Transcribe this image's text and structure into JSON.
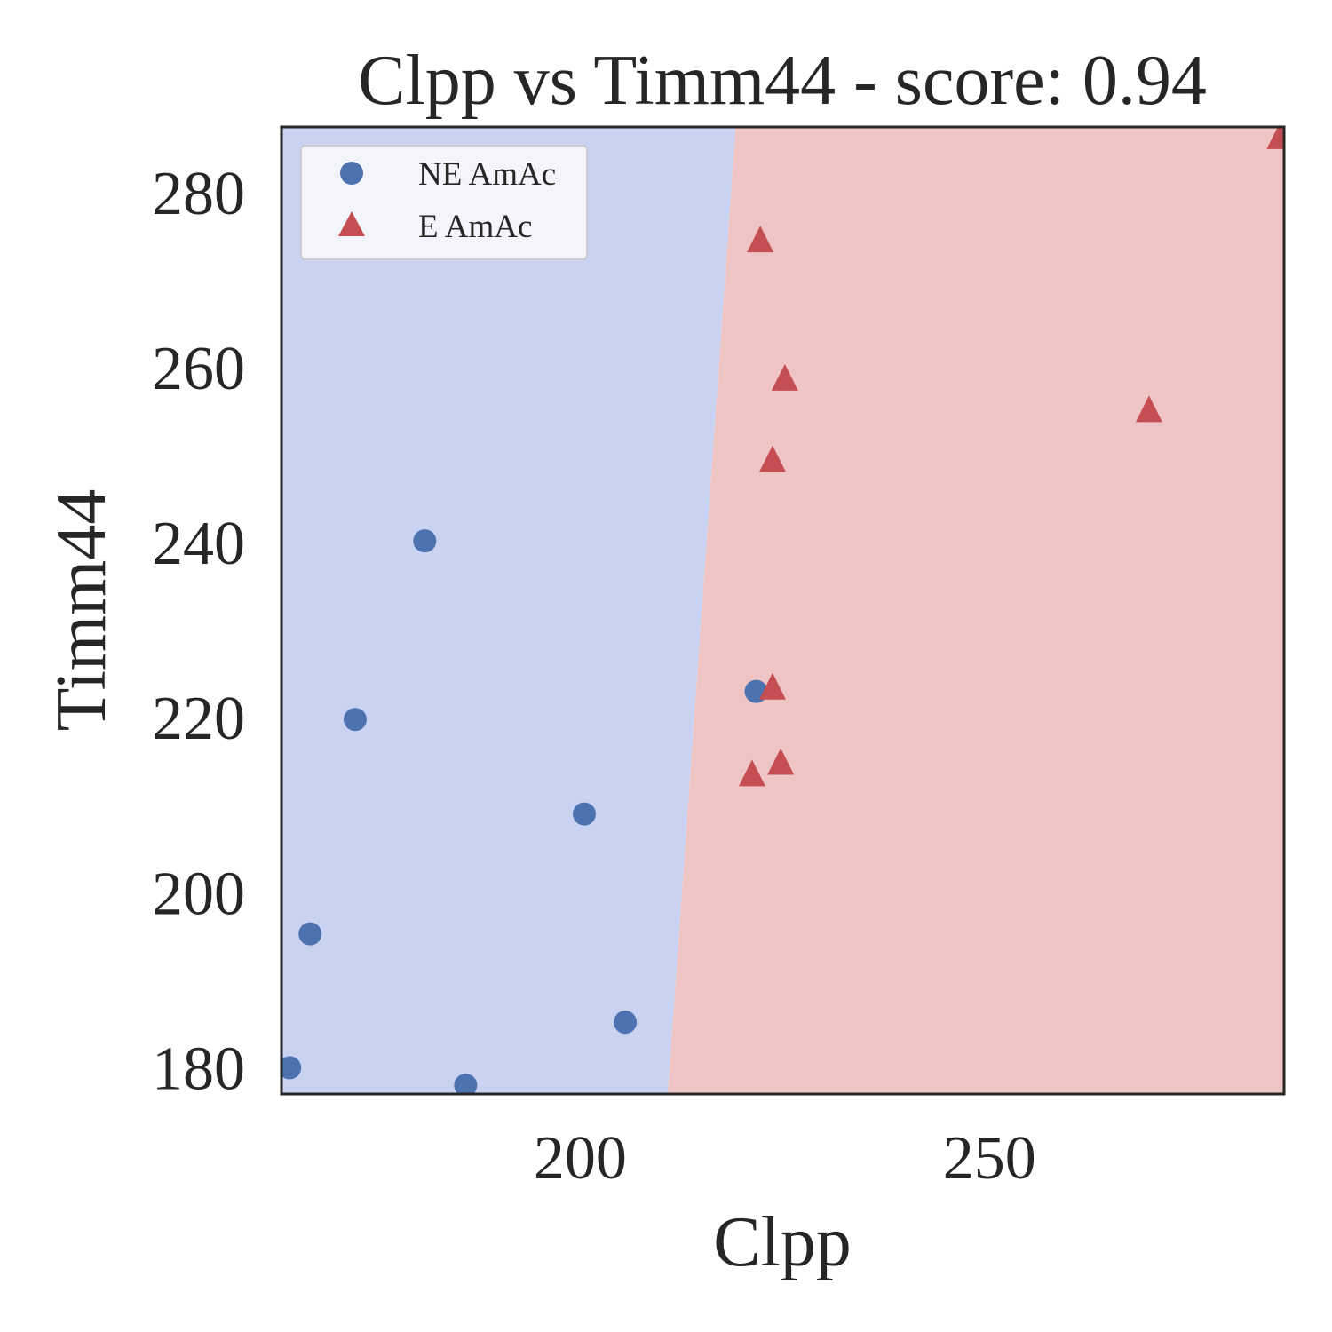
{
  "chart_data": {
    "type": "scatter",
    "title": "Clpp vs Timm44 - score: 0.94",
    "xlabel": "Clpp",
    "ylabel": "Timm44",
    "xlim": [
      163.5,
      286.0
    ],
    "ylim": [
      177.0,
      287.5
    ],
    "xticks": [
      200,
      250
    ],
    "yticks": [
      180,
      200,
      220,
      240,
      260,
      280
    ],
    "grid": false,
    "legend_position": "upper-left",
    "decision_boundary": {
      "points": [
        [
          210.7,
          177.0
        ],
        [
          219.0,
          287.5
        ]
      ],
      "left_class": "NE AmAc",
      "right_class": "E AmAc",
      "left_color": "#c9d2f1",
      "right_color": "#eec5c4"
    },
    "series": [
      {
        "name": "NE AmAc",
        "marker": "circle",
        "color": "#4c72b0",
        "points": [
          [
            164.5,
            180.0
          ],
          [
            167.0,
            195.3
          ],
          [
            172.5,
            219.8
          ],
          [
            181.0,
            240.2
          ],
          [
            186.0,
            178.0
          ],
          [
            200.5,
            209.0
          ],
          [
            205.5,
            185.2
          ],
          [
            221.5,
            223.0
          ]
        ]
      },
      {
        "name": "E AmAc",
        "marker": "triangle",
        "color": "#c44e52",
        "points": [
          [
            222.0,
            274.7
          ],
          [
            225.0,
            258.9
          ],
          [
            223.5,
            249.6
          ],
          [
            223.5,
            223.6
          ],
          [
            221.0,
            213.7
          ],
          [
            224.5,
            215.0
          ],
          [
            269.5,
            255.3
          ],
          [
            285.5,
            286.5
          ]
        ]
      }
    ]
  }
}
